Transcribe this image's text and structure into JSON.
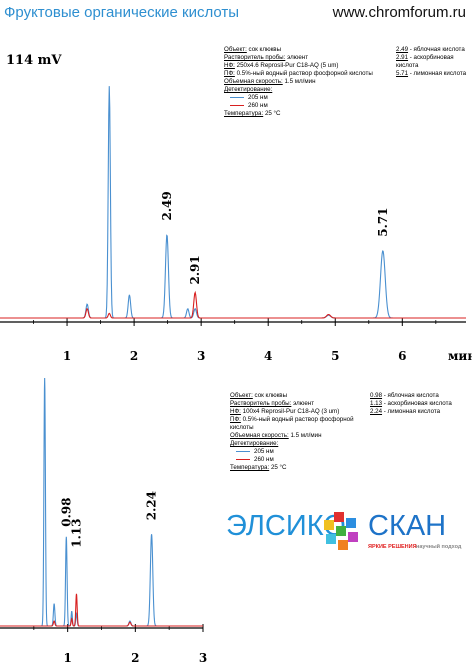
{
  "header": {
    "title": "Фруктовые органические кислоты",
    "site": "www.chromforum.ru"
  },
  "colors": {
    "s205": "#4a90d0",
    "s260": "#d82020",
    "accent": "#2e8fd0"
  },
  "chart_data": [
    {
      "type": "line",
      "ylabel": "114 mV",
      "xlabel": "мин",
      "xlim": [
        0,
        6.95
      ],
      "x_ticks": [
        "1",
        "2",
        "3",
        "4",
        "5",
        "6"
      ],
      "peak_labels": [
        "2.49",
        "2.91",
        "5.71"
      ],
      "series": [
        {
          "name": "205 нм",
          "peaks": [
            [
              1.3,
              0.06,
              0.018
            ],
            [
              1.63,
              1.0,
              0.016
            ],
            [
              1.93,
              0.1,
              0.018
            ],
            [
              2.49,
              0.36,
              0.022
            ],
            [
              2.8,
              0.04,
              0.018
            ],
            [
              2.91,
              0.04,
              0.02
            ],
            [
              4.9,
              0.012,
              0.03
            ],
            [
              5.71,
              0.29,
              0.035
            ]
          ]
        },
        {
          "name": "260 нм",
          "peaks": [
            [
              1.3,
              0.04,
              0.018
            ],
            [
              1.63,
              0.02,
              0.016
            ],
            [
              2.91,
              0.11,
              0.02
            ],
            [
              4.9,
              0.015,
              0.03
            ]
          ]
        }
      ],
      "info": {
        "object_label": "Объект:",
        "object": "сок клюквы",
        "solvent_label": "Растворитель пробы:",
        "solvent": "элюент",
        "nf_label": "НФ:",
        "nf": "250x4.6 Reprosil-Pur C18-AQ (5 um)",
        "pf_label": "ПФ:",
        "pf": "0.5%-ный водный раствор фосфорной кислоты",
        "flow_label": "Объемная скорость:",
        "flow": "1.5 мл/мин",
        "det_label": "Детектирование:",
        "det": [
          "205 нм",
          "260 нм"
        ],
        "temp_label": "Температура:",
        "temp": "25 °C"
      },
      "peaks_legend": [
        {
          "rt": "2.49",
          "name": "- яблочная кислота"
        },
        {
          "rt": "2.91",
          "name": "- аскорбиновая кислота"
        },
        {
          "rt": "5.71",
          "name": "- лимонная кислота"
        }
      ]
    },
    {
      "type": "line",
      "xlim": [
        0,
        3.0
      ],
      "x_ticks": [
        "1",
        "2",
        "3"
      ],
      "peak_labels": [
        "0.98",
        "1.13",
        "2.24"
      ],
      "series": [
        {
          "name": "205 нм",
          "peaks": [
            [
              0.66,
              1.0,
              0.011
            ],
            [
              0.8,
              0.09,
              0.011
            ],
            [
              0.98,
              0.36,
              0.011
            ],
            [
              1.06,
              0.06,
              0.009
            ],
            [
              1.13,
              0.05,
              0.01
            ],
            [
              1.92,
              0.02,
              0.015
            ],
            [
              2.24,
              0.37,
              0.018
            ]
          ]
        },
        {
          "name": "260 нм",
          "peaks": [
            [
              0.8,
              0.02,
              0.011
            ],
            [
              1.06,
              0.03,
              0.009
            ],
            [
              1.13,
              0.13,
              0.01
            ],
            [
              1.92,
              0.015,
              0.015
            ]
          ]
        }
      ],
      "info": {
        "object_label": "Объект:",
        "object": "сок клюквы",
        "solvent_label": "Растворитель пробы:",
        "solvent": "элюент",
        "nf_label": "НФ:",
        "nf": "100x4 Reprosil-Pur C18-AQ (3 um)",
        "pf_label": "ПФ:",
        "pf": "0.5%-ный водный раствор фосфорной кислоты",
        "flow_label": "Объемная скорость:",
        "flow": "1.5 мл/мин",
        "det_label": "Детектирование:",
        "det": [
          "205 нм",
          "260 нм"
        ],
        "temp_label": "Температура:",
        "temp": "25 °C"
      },
      "peaks_legend": [
        {
          "rt": "0.98",
          "name": "- яблочная кислота"
        },
        {
          "rt": "1.13",
          "name": "- аскорбиновая кислота"
        },
        {
          "rt": "2.24",
          "name": "- лимонная кислота"
        }
      ]
    }
  ],
  "logo": {
    "left": "ЭЛСИКО",
    "right": "СКАН",
    "slogan1": "ЯРКИЕ РЕШЕНИЯ",
    "slogan2": "научный подход"
  }
}
